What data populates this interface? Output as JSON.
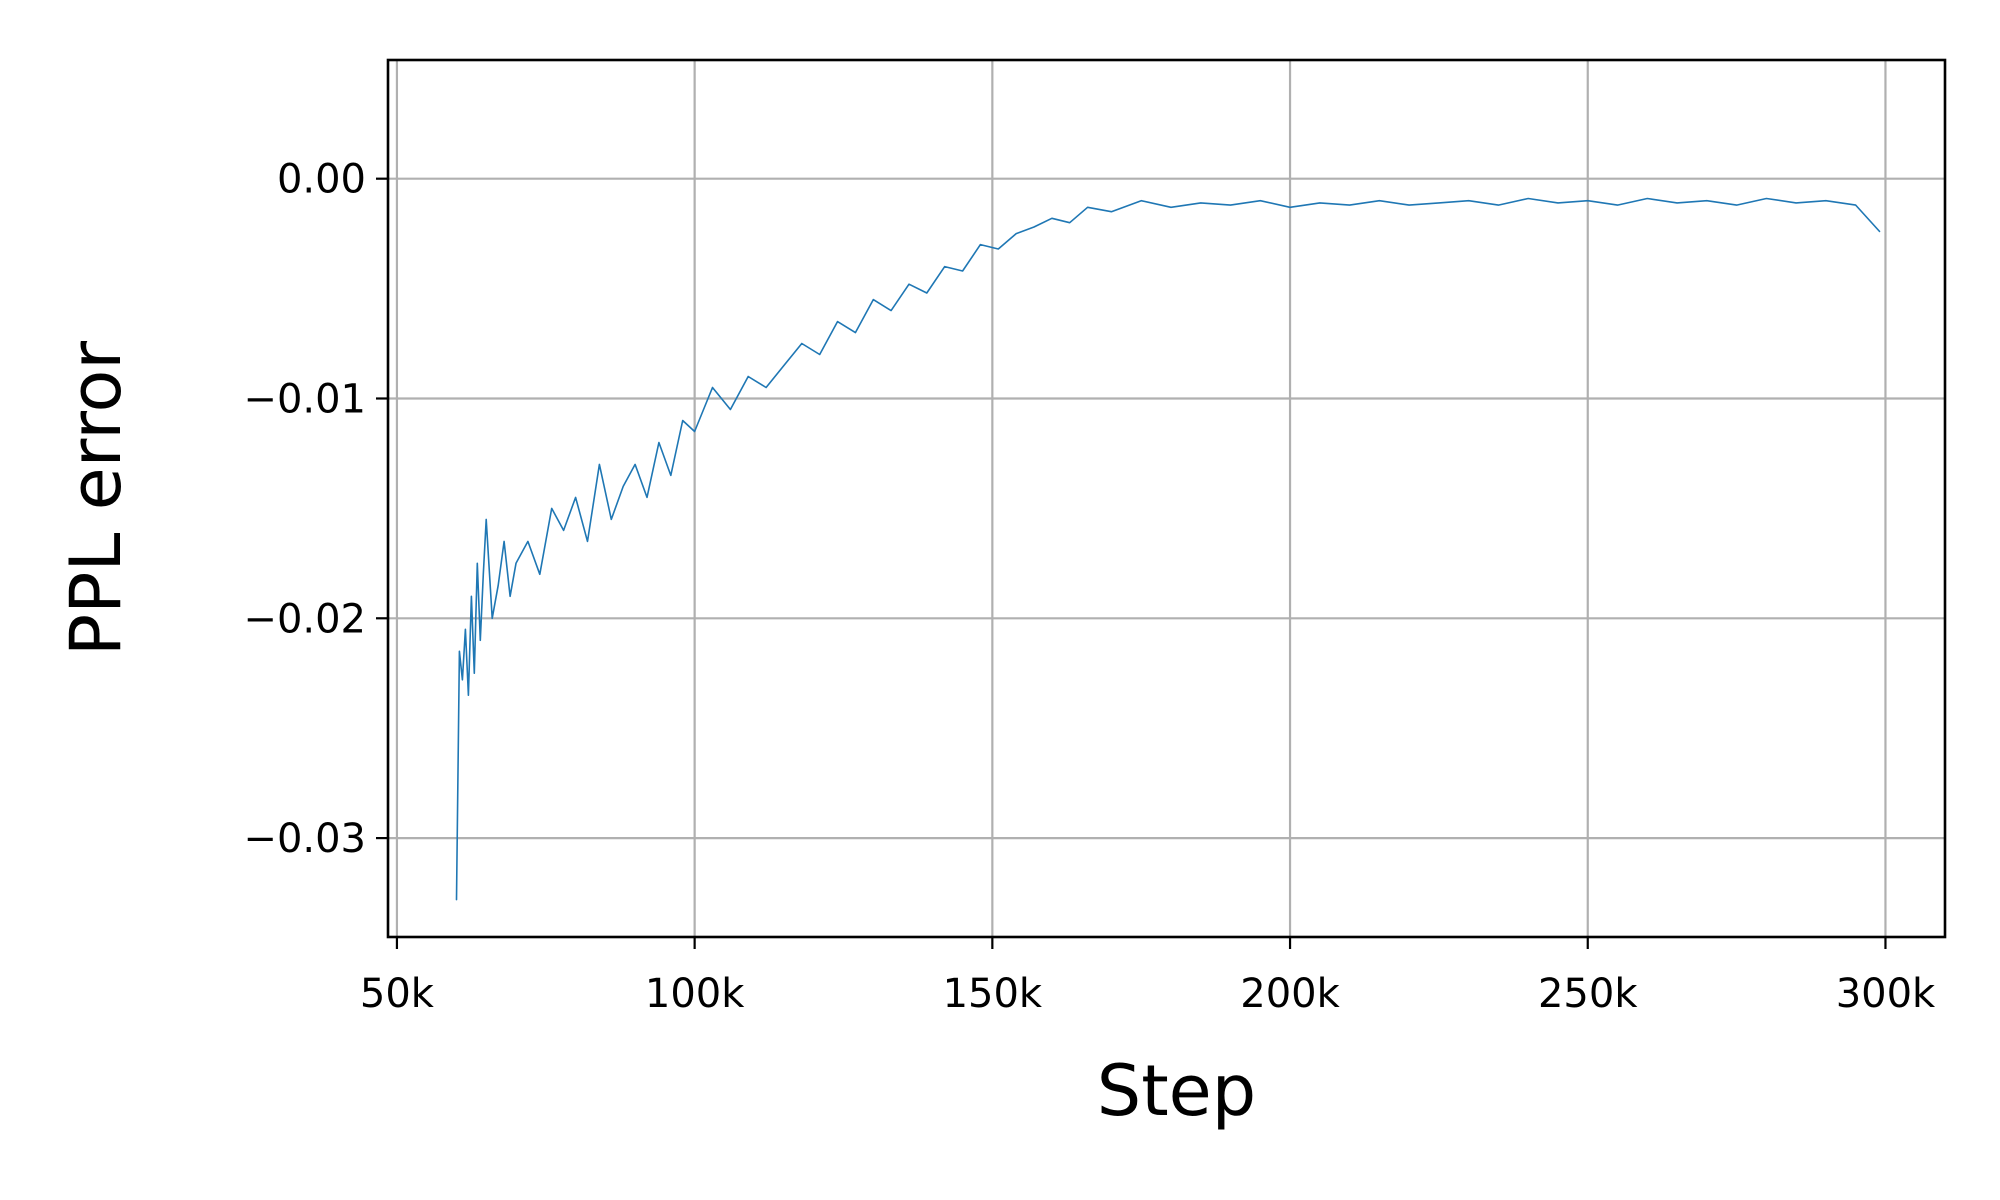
{
  "chart_data": {
    "type": "line",
    "title": "",
    "xlabel": "Step",
    "ylabel": "PPL error",
    "xlim": [
      48500,
      310000
    ],
    "ylim": [
      -0.0345,
      0.0054
    ],
    "x_ticks": [
      {
        "value": 50000,
        "label": "50k"
      },
      {
        "value": 100000,
        "label": "100k"
      },
      {
        "value": 150000,
        "label": "150k"
      },
      {
        "value": 200000,
        "label": "200k"
      },
      {
        "value": 250000,
        "label": "250k"
      },
      {
        "value": 300000,
        "label": "300k"
      }
    ],
    "y_ticks": [
      {
        "value": 0.0,
        "label": "0.00"
      },
      {
        "value": -0.01,
        "label": "−0.01"
      },
      {
        "value": -0.02,
        "label": "−0.02"
      },
      {
        "value": -0.03,
        "label": "−0.03"
      }
    ],
    "grid": true,
    "legend": "none",
    "series": [
      {
        "color": "#1f77b4",
        "x": [
          60000,
          60500,
          61000,
          61500,
          62000,
          62500,
          63000,
          63500,
          64000,
          64500,
          65000,
          66000,
          67000,
          68000,
          69000,
          70000,
          72000,
          74000,
          76000,
          78000,
          80000,
          82000,
          84000,
          86000,
          88000,
          90000,
          92000,
          94000,
          96000,
          98000,
          100000,
          103000,
          106000,
          109000,
          112000,
          115000,
          118000,
          121000,
          124000,
          127000,
          130000,
          133000,
          136000,
          139000,
          142000,
          145000,
          148000,
          151000,
          154000,
          157000,
          160000,
          163000,
          166000,
          170000,
          175000,
          180000,
          185000,
          190000,
          195000,
          200000,
          205000,
          210000,
          215000,
          220000,
          225000,
          230000,
          235000,
          240000,
          245000,
          250000,
          255000,
          260000,
          265000,
          270000,
          275000,
          280000,
          285000,
          290000,
          295000,
          299000
        ],
        "values": [
          -0.0328,
          -0.0215,
          -0.0228,
          -0.0205,
          -0.0235,
          -0.019,
          -0.0225,
          -0.0175,
          -0.021,
          -0.018,
          -0.0155,
          -0.02,
          -0.0185,
          -0.0165,
          -0.019,
          -0.0175,
          -0.0165,
          -0.018,
          -0.015,
          -0.016,
          -0.0145,
          -0.0165,
          -0.013,
          -0.0155,
          -0.014,
          -0.013,
          -0.0145,
          -0.012,
          -0.0135,
          -0.011,
          -0.0115,
          -0.0095,
          -0.0105,
          -0.009,
          -0.0095,
          -0.0085,
          -0.0075,
          -0.008,
          -0.0065,
          -0.007,
          -0.0055,
          -0.006,
          -0.0048,
          -0.0052,
          -0.004,
          -0.0042,
          -0.003,
          -0.0032,
          -0.0025,
          -0.0022,
          -0.0018,
          -0.002,
          -0.0013,
          -0.0015,
          -0.001,
          -0.0013,
          -0.0011,
          -0.0012,
          -0.001,
          -0.0013,
          -0.0011,
          -0.0012,
          -0.001,
          -0.0012,
          -0.0011,
          -0.001,
          -0.0012,
          -0.0009,
          -0.0011,
          -0.001,
          -0.0012,
          -0.0009,
          -0.0011,
          -0.001,
          -0.0012,
          -0.0009,
          -0.0011,
          -0.001,
          -0.0012,
          -0.0024
        ]
      }
    ]
  }
}
